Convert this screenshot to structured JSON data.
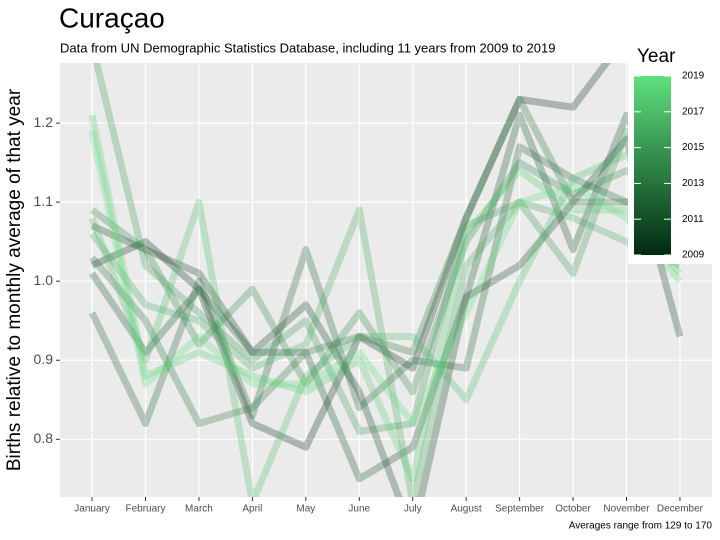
{
  "chart_data": {
    "type": "line",
    "title": "Curaçao",
    "subtitle": "Data from UN Demographic Statistics Database, including 11 years from 2009 to 2019",
    "y_label": "Births relative to monthly average of that year",
    "caption": "Averages range from 129 to 170",
    "categories": [
      "January",
      "February",
      "March",
      "April",
      "May",
      "June",
      "July",
      "August",
      "September",
      "October",
      "November",
      "December"
    ],
    "ylim": [
      0.727,
      1.276
    ],
    "yticks": [
      {
        "value": 0.8,
        "label": "0.8"
      },
      {
        "value": 0.9,
        "label": "0.9"
      },
      {
        "value": 1.0,
        "label": "1.0"
      },
      {
        "value": 1.1,
        "label": "1.1"
      },
      {
        "value": 1.2,
        "label": "1.2"
      }
    ],
    "grid": true,
    "legend": {
      "title": "Year",
      "position": "right",
      "limits": [
        2009,
        2019
      ],
      "ticks": [
        2009,
        2011,
        2013,
        2015,
        2017,
        2019
      ],
      "low_color": "#002a12",
      "high_color": "#5fe07d"
    },
    "series": [
      {
        "year": 2009,
        "values": [
          1.02,
          1.05,
          0.99,
          0.82,
          0.79,
          0.93,
          0.89,
          1.08,
          1.23,
          1.22,
          1.31,
          1.29
        ]
      },
      {
        "year": 2010,
        "values": [
          1.07,
          1.04,
          1.01,
          0.91,
          0.97,
          0.86,
          0.68,
          0.98,
          1.02,
          1.1,
          1.18,
          0.93
        ]
      },
      {
        "year": 2011,
        "values": [
          1.01,
          0.91,
          0.99,
          0.91,
          0.91,
          0.75,
          0.79,
          0.98,
          1.21,
          1.04,
          1.21,
          1.06
        ]
      },
      {
        "year": 2012,
        "values": [
          0.96,
          0.82,
          1.0,
          0.83,
          1.04,
          0.84,
          0.9,
          0.89,
          1.17,
          1.13,
          1.1,
          1.1
        ]
      },
      {
        "year": 2013,
        "values": [
          1.03,
          0.95,
          0.82,
          0.84,
          0.91,
          0.93,
          0.91,
          1.08,
          1.23,
          1.1,
          1.1,
          1.08
        ]
      },
      {
        "year": 2014,
        "values": [
          1.09,
          1.04,
          0.92,
          0.99,
          0.87,
          0.96,
          0.86,
          1.05,
          1.15,
          1.11,
          1.14,
          1.09
        ]
      },
      {
        "year": 2015,
        "values": [
          1.3,
          1.02,
          0.96,
          0.9,
          0.95,
          0.81,
          0.82,
          1.07,
          1.1,
          1.01,
          1.19,
          1.04
        ]
      },
      {
        "year": 2016,
        "values": [
          1.06,
          0.97,
          0.95,
          0.89,
          0.92,
          1.09,
          0.72,
          1.02,
          1.1,
          1.08,
          1.05,
          1.02
        ]
      },
      {
        "year": 2017,
        "values": [
          1.08,
          0.9,
          1.1,
          0.72,
          0.88,
          0.93,
          0.93,
          0.85,
          1.0,
          1.13,
          1.16,
          1.06
        ]
      },
      {
        "year": 2018,
        "values": [
          1.21,
          0.88,
          0.91,
          0.88,
          0.86,
          0.9,
          0.75,
          1.06,
          1.14,
          1.09,
          1.09,
          1.01
        ]
      },
      {
        "year": 2019,
        "values": [
          1.19,
          0.87,
          0.93,
          0.87,
          0.87,
          0.91,
          0.82,
          0.96,
          1.1,
          1.12,
          1.08,
          1.0
        ]
      }
    ]
  }
}
